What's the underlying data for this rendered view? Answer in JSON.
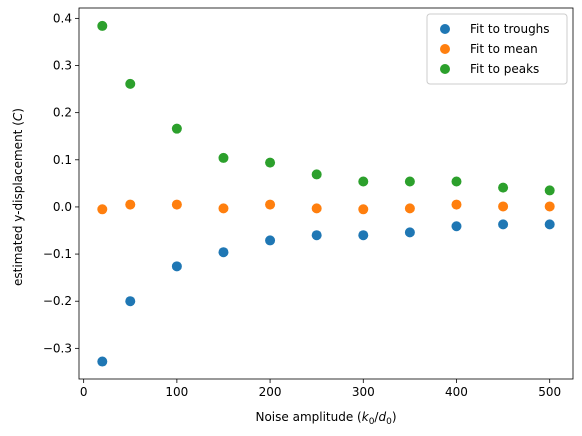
{
  "chart_data": {
    "type": "scatter",
    "xlabel_main": "Noise amplitude (",
    "xlabel_k": "k",
    "xlabel_k_sub": "0",
    "xlabel_slash": "/",
    "xlabel_d": "d",
    "xlabel_d_sub": "0",
    "xlabel_close": ")",
    "ylabel_main": "estimated y-displacement (",
    "ylabel_var": "C",
    "ylabel_close": ")",
    "xlim": [
      -5,
      525
    ],
    "ylim": [
      -0.365,
      0.422
    ],
    "x_ticks": [
      0,
      100,
      200,
      300,
      400,
      500
    ],
    "x_tick_labels": [
      "0",
      "100",
      "200",
      "300",
      "400",
      "500"
    ],
    "y_ticks": [
      -0.3,
      -0.2,
      -0.1,
      0.0,
      0.1,
      0.2,
      0.3,
      0.4
    ],
    "y_tick_labels": [
      "−0.3",
      "−0.2",
      "−0.1",
      "0.0",
      "0.1",
      "0.2",
      "0.3",
      "0.4"
    ],
    "grid": false,
    "legend_position": "top-right",
    "x": [
      20,
      50,
      100,
      150,
      200,
      250,
      300,
      350,
      400,
      450,
      500
    ],
    "series": [
      {
        "name": "Fit to troughs",
        "color": "#1f77b4",
        "values": [
          -0.328,
          -0.2,
          -0.126,
          -0.096,
          -0.071,
          -0.06,
          -0.06,
          -0.054,
          -0.041,
          -0.037,
          -0.037
        ]
      },
      {
        "name": "Fit to mean",
        "color": "#ff7f0e",
        "values": [
          -0.005,
          0.005,
          0.005,
          -0.003,
          0.005,
          -0.003,
          -0.005,
          -0.003,
          0.005,
          0.001,
          0.001
        ]
      },
      {
        "name": "Fit to peaks",
        "color": "#2ca02c",
        "values": [
          0.384,
          0.261,
          0.166,
          0.104,
          0.094,
          0.069,
          0.054,
          0.054,
          0.054,
          0.041,
          0.035
        ]
      }
    ]
  }
}
